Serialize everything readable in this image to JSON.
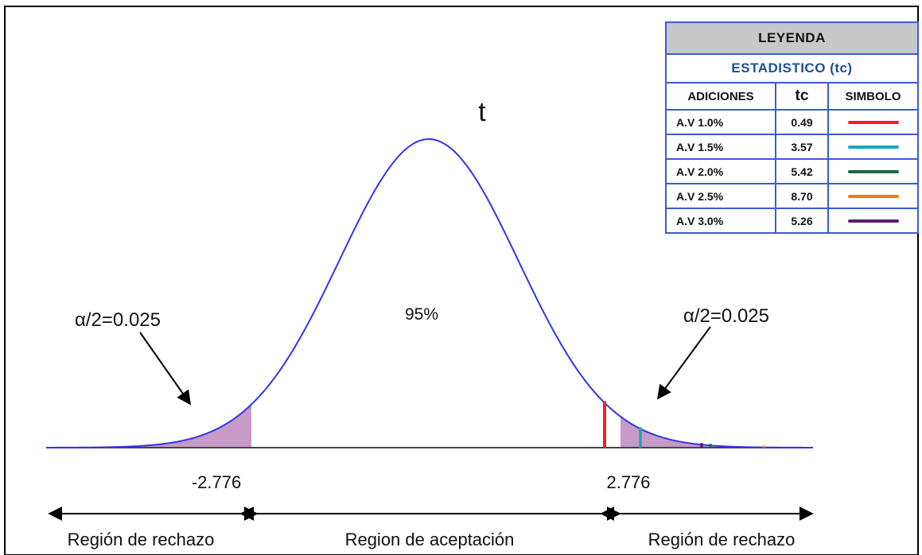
{
  "chart_data": {
    "type": "line",
    "distribution": "t",
    "title": "t",
    "center_label": "95%",
    "alpha_left_label": "α/2=0.025",
    "alpha_right_label": "α/2=0.025",
    "critical_values": [
      -2.776,
      2.776
    ],
    "critical_left_label": "-2.776",
    "critical_right_label": "2.776",
    "regions": {
      "left": "Región de rechazo",
      "center": "Region de aceptación",
      "right": "Región de rechazo"
    },
    "test_statistics": [
      {
        "name": "A.V 1.0%",
        "tc": 0.49,
        "color": "#ff1a1a"
      },
      {
        "name": "A.V 1.5%",
        "tc": 3.57,
        "color": "#1aa7b8"
      },
      {
        "name": "A.V 2.0%",
        "tc": 5.42,
        "color": "#1e6b3c"
      },
      {
        "name": "A.V 2.5%",
        "tc": 8.7,
        "color": "#f07a1e"
      },
      {
        "name": "A.V 3.0%",
        "tc": 5.26,
        "color": "#5a1e6e"
      }
    ],
    "curve_color": "#3333ee",
    "shade_color": "#c79ac8"
  },
  "legend": {
    "title": "LEYENDA",
    "subtitle": "ESTADISTICO (tc)",
    "col_adiciones": "ADICIONES",
    "col_tc": "tc",
    "col_simbolo": "SIMBOLO",
    "rows": [
      {
        "name": "A.V 1.0%",
        "tc": "0.49",
        "color": "#ff1a1a"
      },
      {
        "name": "A.V 1.5%",
        "tc": "3.57",
        "color": "#1aa7b8"
      },
      {
        "name": "A.V 2.0%",
        "tc": "5.42",
        "color": "#1e6b3c"
      },
      {
        "name": "A.V 2.5%",
        "tc": "8.70",
        "color": "#f07a1e"
      },
      {
        "name": "A.V 3.0%",
        "tc": "5.26",
        "color": "#5a1e6e"
      }
    ]
  }
}
